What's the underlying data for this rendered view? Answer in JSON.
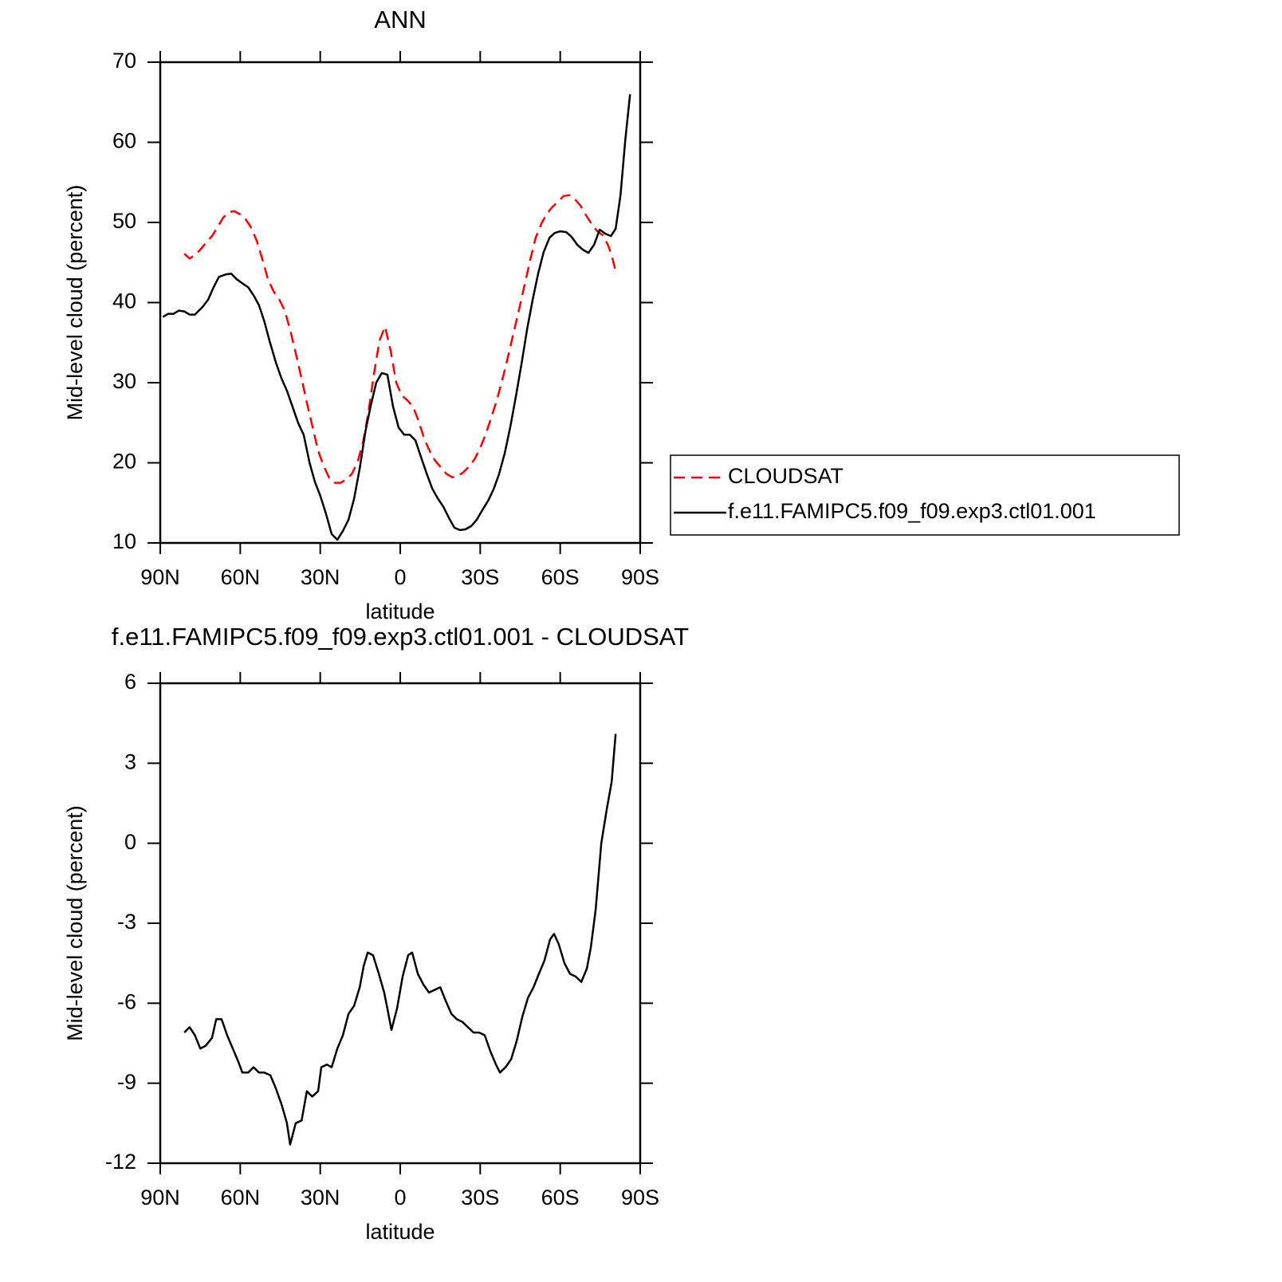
{
  "chart_data": [
    {
      "type": "line",
      "title": "ANN",
      "xlabel": "latitude",
      "ylabel": "Mid-level cloud (percent)",
      "xlim": [
        90,
        -90
      ],
      "xticks": [
        {
          "value": 90,
          "label": "90N"
        },
        {
          "value": 60,
          "label": "60N"
        },
        {
          "value": 30,
          "label": "30N"
        },
        0,
        {
          "value": -30,
          "label": "30S"
        },
        {
          "value": -60,
          "label": "60S"
        },
        {
          "value": -90,
          "label": "90S"
        }
      ],
      "ylim": [
        10,
        70
      ],
      "yticks": [
        10,
        20,
        30,
        40,
        50,
        60,
        70
      ],
      "legend": "right",
      "series": [
        {
          "name": "CLOUDSAT",
          "color": "#ff0000",
          "line_style": "dashed",
          "x": [
            81,
            79,
            77,
            75,
            73,
            70.6,
            68.5,
            66.4,
            64.3,
            62.2,
            60,
            58,
            56,
            53.8,
            51.7,
            49.6,
            47.5,
            45.4,
            43.3,
            41.2,
            39.2,
            37,
            35,
            32.9,
            30.8,
            28.7,
            26.6,
            24.5,
            22.4,
            20.3,
            18.2,
            16.1,
            14,
            12,
            9.9,
            7.8,
            5.7,
            3.6,
            1.5,
            -0.6,
            -2.7,
            -4.8,
            -6.9,
            -9,
            -11,
            -13,
            -15.3,
            -17.4,
            -19.5,
            -21.5,
            -23.6,
            -25.7,
            -27.8,
            -29.9,
            -32,
            -34,
            -36.2,
            -38.3,
            -40.4,
            -42.5,
            -44.6,
            -46.7,
            -48.8,
            -50.8,
            -53,
            -55,
            -57,
            -59.2,
            -61.3,
            -63.4,
            -65.5,
            -67.6,
            -69.7,
            -71.8,
            -73.9,
            -76,
            -78,
            -79.3,
            -80.8
          ],
          "values": [
            46.1,
            45.5,
            45.9,
            46.6,
            47.4,
            48.3,
            49.4,
            50.6,
            51.3,
            51.4,
            51.0,
            50.4,
            49.4,
            47.7,
            45.4,
            42.9,
            41.4,
            40.4,
            39.0,
            36.5,
            33.7,
            30.5,
            27.5,
            24.5,
            21.5,
            19.6,
            18.1,
            17.5,
            17.5,
            17.9,
            18.6,
            20.0,
            22.5,
            26.2,
            31.0,
            35.2,
            37.0,
            34.0,
            30.0,
            28.4,
            27.8,
            27.0,
            25.2,
            23.0,
            21.5,
            20.3,
            19.4,
            18.6,
            18.2,
            18.3,
            18.8,
            19.5,
            20.4,
            21.8,
            23.5,
            25.5,
            27.8,
            30.4,
            33.2,
            36.2,
            39.2,
            42.3,
            45.4,
            48.1,
            49.9,
            51.1,
            51.9,
            52.6,
            53.3,
            53.4,
            52.9,
            52.1,
            50.9,
            49.8,
            48.9,
            48.4,
            47.1,
            45.9,
            43.9
          ]
        },
        {
          "name": "f.e11.FAMIPC5.f09_f09.exp3.ctl01.001",
          "color": "#000000",
          "line_style": "solid",
          "x": [
            89,
            87,
            85,
            83,
            81,
            79,
            77,
            74,
            72,
            70,
            68,
            65.5,
            63.4,
            61.3,
            59.2,
            57,
            55,
            53,
            51,
            49,
            46.6,
            44.5,
            42.5,
            40.4,
            38.3,
            36.2,
            34,
            32,
            30,
            27.8,
            25.7,
            23.6,
            21.5,
            19.4,
            17.3,
            15.2,
            13,
            11,
            9,
            6.9,
            4.8,
            2.7,
            0.6,
            -1.5,
            -3.6,
            -5.7,
            -7.8,
            -10,
            -12,
            -14,
            -16.2,
            -18.3,
            -20.3,
            -22.4,
            -24.5,
            -26.6,
            -28.7,
            -30.8,
            -33,
            -35,
            -37,
            -39.2,
            -41.3,
            -43.4,
            -45.5,
            -47.6,
            -49.7,
            -51.8,
            -53.8,
            -56,
            -58,
            -60.1,
            -62.2,
            -64.3,
            -66.4,
            -68.5,
            -70.6,
            -72.7,
            -74.8,
            -76.9,
            -79,
            -80.8,
            -82.6,
            -84.4,
            -86.2
          ],
          "values": [
            38.2,
            38.6,
            38.6,
            39.0,
            38.9,
            38.5,
            38.5,
            39.5,
            40.4,
            41.9,
            43.2,
            43.5,
            43.6,
            42.9,
            42.4,
            41.9,
            40.9,
            39.7,
            37.7,
            35.2,
            32.5,
            30.5,
            29.0,
            27.0,
            25.0,
            23.5,
            20.0,
            17.6,
            15.9,
            13.6,
            11.1,
            10.4,
            11.5,
            12.9,
            15.5,
            19.3,
            24.0,
            27.2,
            30.0,
            31.2,
            31.0,
            27.0,
            24.4,
            23.5,
            23.5,
            22.8,
            20.7,
            18.6,
            16.8,
            15.6,
            14.5,
            13.1,
            11.9,
            11.6,
            11.7,
            12.1,
            12.9,
            14.1,
            15.3,
            16.7,
            18.5,
            21.2,
            24.5,
            28.3,
            32.4,
            36.7,
            40.4,
            43.7,
            46.3,
            48.1,
            48.7,
            48.9,
            48.8,
            48.2,
            47.2,
            46.6,
            46.2,
            47.2,
            49.1,
            48.6,
            48.3,
            49.2,
            53.4,
            60.3,
            66.0
          ]
        }
      ]
    },
    {
      "type": "line",
      "title": "f.e11.FAMIPC5.f09_f09.exp3.ctl01.001 - CLOUDSAT",
      "xlabel": "latitude",
      "ylabel": "Mid-level cloud (percent)",
      "xlim": [
        90,
        -90
      ],
      "xticks": [
        {
          "value": 90,
          "label": "90N"
        },
        {
          "value": 60,
          "label": "60N"
        },
        {
          "value": 30,
          "label": "30N"
        },
        0,
        {
          "value": -30,
          "label": "30S"
        },
        {
          "value": -60,
          "label": "60S"
        },
        {
          "value": -90,
          "label": "90S"
        }
      ],
      "ylim": [
        -12,
        6
      ],
      "yticks": [
        -12,
        -9,
        -6,
        -3,
        0,
        3,
        6
      ],
      "series": [
        {
          "color": "#000000",
          "line_style": "solid",
          "x": [
            81,
            79,
            77,
            75,
            73,
            70.6,
            69,
            67,
            64.9,
            62.8,
            60.7,
            59.2,
            57,
            55,
            53,
            51,
            48.7,
            46.6,
            44.5,
            42.5,
            41.3,
            39.2,
            37,
            35,
            33,
            30.8,
            29.6,
            27.5,
            25.7,
            23.6,
            21.5,
            19.4,
            17.3,
            15.2,
            13.7,
            12.2,
            10.2,
            8,
            6,
            4.8,
            3.3,
            1.2,
            -0.9,
            -3,
            -4.5,
            -6.6,
            -8.7,
            -10.8,
            -12.9,
            -15,
            -17,
            -19.2,
            -21.2,
            -23.3,
            -25.4,
            -27.5,
            -29.6,
            -31.7,
            -33.8,
            -35.9,
            -37.4,
            -39.5,
            -41.6,
            -43.7,
            -45.8,
            -47.9,
            -50,
            -52,
            -54.1,
            -56.2,
            -57.7,
            -59.5,
            -61.6,
            -63.7,
            -65.8,
            -67.9,
            -70,
            -71.5,
            -73.3,
            -75.4,
            -77.5,
            -79.3,
            -80.8
          ],
          "values": [
            -7.1,
            -6.9,
            -7.2,
            -7.7,
            -7.6,
            -7.3,
            -6.6,
            -6.6,
            -7.2,
            -7.7,
            -8.2,
            -8.6,
            -8.6,
            -8.4,
            -8.6,
            -8.6,
            -8.7,
            -9.2,
            -9.8,
            -10.5,
            -11.3,
            -10.5,
            -10.4,
            -9.3,
            -9.5,
            -9.3,
            -8.4,
            -8.3,
            -8.4,
            -7.7,
            -7.2,
            -6.4,
            -6.1,
            -5.4,
            -4.6,
            -4.1,
            -4.2,
            -4.9,
            -5.6,
            -6.2,
            -7.0,
            -6.2,
            -5.0,
            -4.2,
            -4.1,
            -4.9,
            -5.3,
            -5.6,
            -5.5,
            -5.4,
            -5.9,
            -6.4,
            -6.6,
            -6.7,
            -6.9,
            -7.1,
            -7.1,
            -7.2,
            -7.8,
            -8.3,
            -8.6,
            -8.4,
            -8.1,
            -7.4,
            -6.5,
            -5.8,
            -5.4,
            -4.9,
            -4.4,
            -3.6,
            -3.4,
            -3.8,
            -4.5,
            -4.9,
            -5.0,
            -5.2,
            -4.7,
            -3.9,
            -2.5,
            0.0,
            1.3,
            2.3,
            4.1
          ]
        }
      ]
    }
  ]
}
